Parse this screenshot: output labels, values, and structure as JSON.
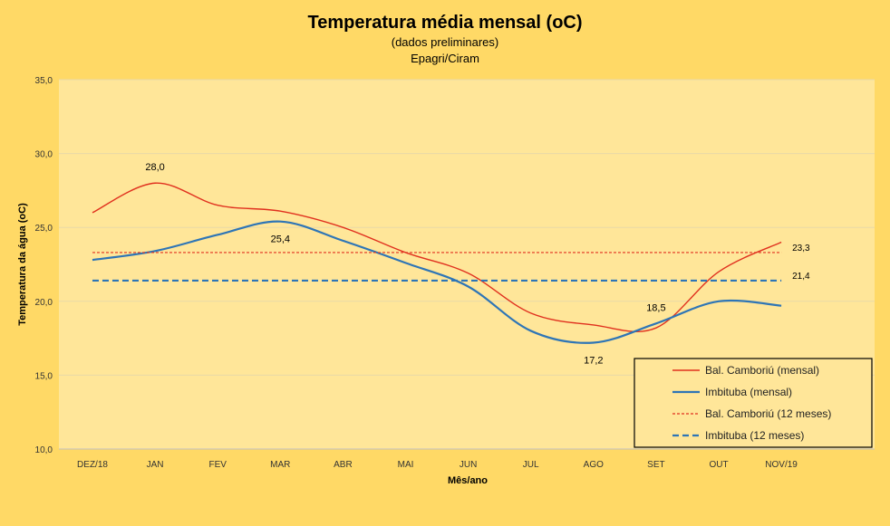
{
  "chart_data": {
    "type": "line",
    "title": "Temperatura média mensal (oC)",
    "subtitle": "(dados preliminares)",
    "source": "Epagri/Ciram",
    "xlabel": "Mês/ano",
    "ylabel": "Temperatura da água (oC)",
    "ylim": [
      10,
      35
    ],
    "yticks": [
      "10,0",
      "15,0",
      "20,0",
      "25,0",
      "30,0",
      "35,0"
    ],
    "categories": [
      "DEZ/18",
      "JAN",
      "FEV",
      "MAR",
      "ABR",
      "MAI",
      "JUN",
      "JUL",
      "AGO",
      "SET",
      "OUT",
      "NOV/19"
    ],
    "grid": true,
    "legend_position": "bottom-right",
    "series": [
      {
        "name": "Bal. Camboriú (mensal)",
        "color": "#E0301E",
        "style": "solid",
        "values": [
          26.0,
          28.0,
          26.5,
          26.1,
          25.0,
          23.3,
          21.9,
          19.2,
          18.4,
          18.2,
          22.0,
          24.0
        ]
      },
      {
        "name": "Imbituba (mensal)",
        "color": "#2E75B6",
        "style": "solid",
        "values": [
          22.8,
          23.4,
          24.5,
          25.4,
          24.1,
          22.6,
          21.0,
          18.0,
          17.2,
          18.5,
          20.0,
          19.7
        ]
      },
      {
        "name": "Bal. Camboriú (12 meses)",
        "color": "#E0301E",
        "style": "dotted",
        "values": [
          23.3,
          23.3,
          23.3,
          23.3,
          23.3,
          23.3,
          23.3,
          23.3,
          23.3,
          23.3,
          23.3,
          23.3
        ]
      },
      {
        "name": "Imbituba (12 meses)",
        "color": "#2E75B6",
        "style": "dashed",
        "values": [
          21.4,
          21.4,
          21.4,
          21.4,
          21.4,
          21.4,
          21.4,
          21.4,
          21.4,
          21.4,
          21.4,
          21.4
        ]
      }
    ],
    "annotations": [
      {
        "text": "28,0",
        "series": 0,
        "index": 1,
        "pos": "above"
      },
      {
        "text": "25,4",
        "series": 1,
        "index": 3,
        "pos": "below"
      },
      {
        "text": "17,2",
        "series": 1,
        "index": 8,
        "pos": "below"
      },
      {
        "text": "18,5",
        "series": 1,
        "index": 9,
        "pos": "above"
      },
      {
        "text": "23,3",
        "series": 2,
        "index": 11,
        "pos": "right"
      },
      {
        "text": "21,4",
        "series": 3,
        "index": 11,
        "pos": "right"
      }
    ]
  }
}
